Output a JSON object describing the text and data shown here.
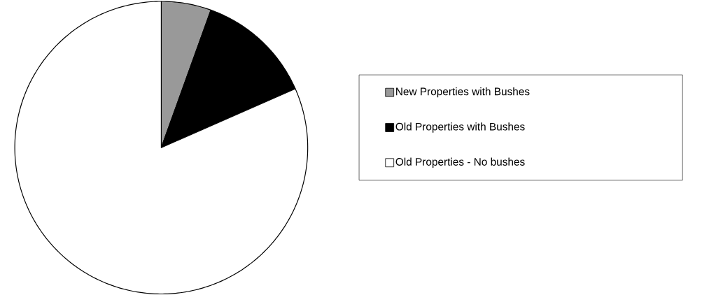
{
  "chart_data": {
    "type": "pie",
    "categories": [
      "New Properties with Bushes",
      "Old Properties with Bushes",
      "Old Properties - No bushes"
    ],
    "values": [
      5.5,
      12.9,
      81.6
    ],
    "colors": [
      "#999999",
      "#000000",
      "#ffffff"
    ],
    "legend": "right"
  }
}
